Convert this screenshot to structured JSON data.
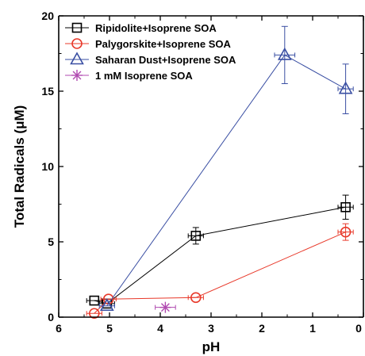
{
  "chart_data": {
    "type": "scatter",
    "xlabel": "pH",
    "ylabel": "Total Radicals (μM)",
    "xlim": [
      6,
      0
    ],
    "ylim": [
      0,
      20
    ],
    "x_ticks": [
      6,
      5,
      4,
      3,
      2,
      1,
      0
    ],
    "y_ticks": [
      0,
      5,
      10,
      15,
      20
    ],
    "grid": false,
    "legend_position": "top-left",
    "series": [
      {
        "name": "Ripidolite+Isoprene SOA",
        "marker": "square",
        "color": "#000000",
        "connected": true,
        "points": [
          {
            "x": 5.3,
            "y": 1.1,
            "xerr": 0.15,
            "yerr": 0.0
          },
          {
            "x": 5.05,
            "y": 0.9,
            "xerr": 0.15,
            "yerr": 0.0
          },
          {
            "x": 3.3,
            "y": 5.4,
            "xerr": 0.15,
            "yerr": 0.55
          },
          {
            "x": 0.35,
            "y": 7.3,
            "xerr": 0.15,
            "yerr": 0.8
          }
        ]
      },
      {
        "name": "Palygorskite+Isoprene SOA",
        "marker": "circle",
        "color": "#e8392a",
        "connected": true,
        "points": [
          {
            "x": 5.3,
            "y": 0.25,
            "xerr": 0.15,
            "yerr": 0.0
          },
          {
            "x": 5.02,
            "y": 1.2,
            "xerr": 0.15,
            "yerr": 0.0
          },
          {
            "x": 3.3,
            "y": 1.3,
            "xerr": 0.15,
            "yerr": 0.0
          },
          {
            "x": 0.35,
            "y": 5.65,
            "xerr": 0.15,
            "yerr": 0.55
          }
        ]
      },
      {
        "name": "Saharan Dust+Isoprene SOA",
        "marker": "triangle",
        "color": "#3a4fa3",
        "connected": true,
        "points": [
          {
            "x": 5.05,
            "y": 0.75,
            "xerr": 0.15,
            "yerr": 0.0
          },
          {
            "x": 1.55,
            "y": 17.4,
            "xerr": 0.2,
            "yerr": 1.9
          },
          {
            "x": 0.35,
            "y": 15.15,
            "xerr": 0.15,
            "yerr": 1.65
          }
        ]
      },
      {
        "name": "1 mM Isoprene SOA",
        "marker": "asterisk",
        "color": "#b04ab0",
        "connected": false,
        "points": [
          {
            "x": 3.9,
            "y": 0.65,
            "xerr": 0.2,
            "yerr": 0.0
          }
        ]
      }
    ]
  }
}
